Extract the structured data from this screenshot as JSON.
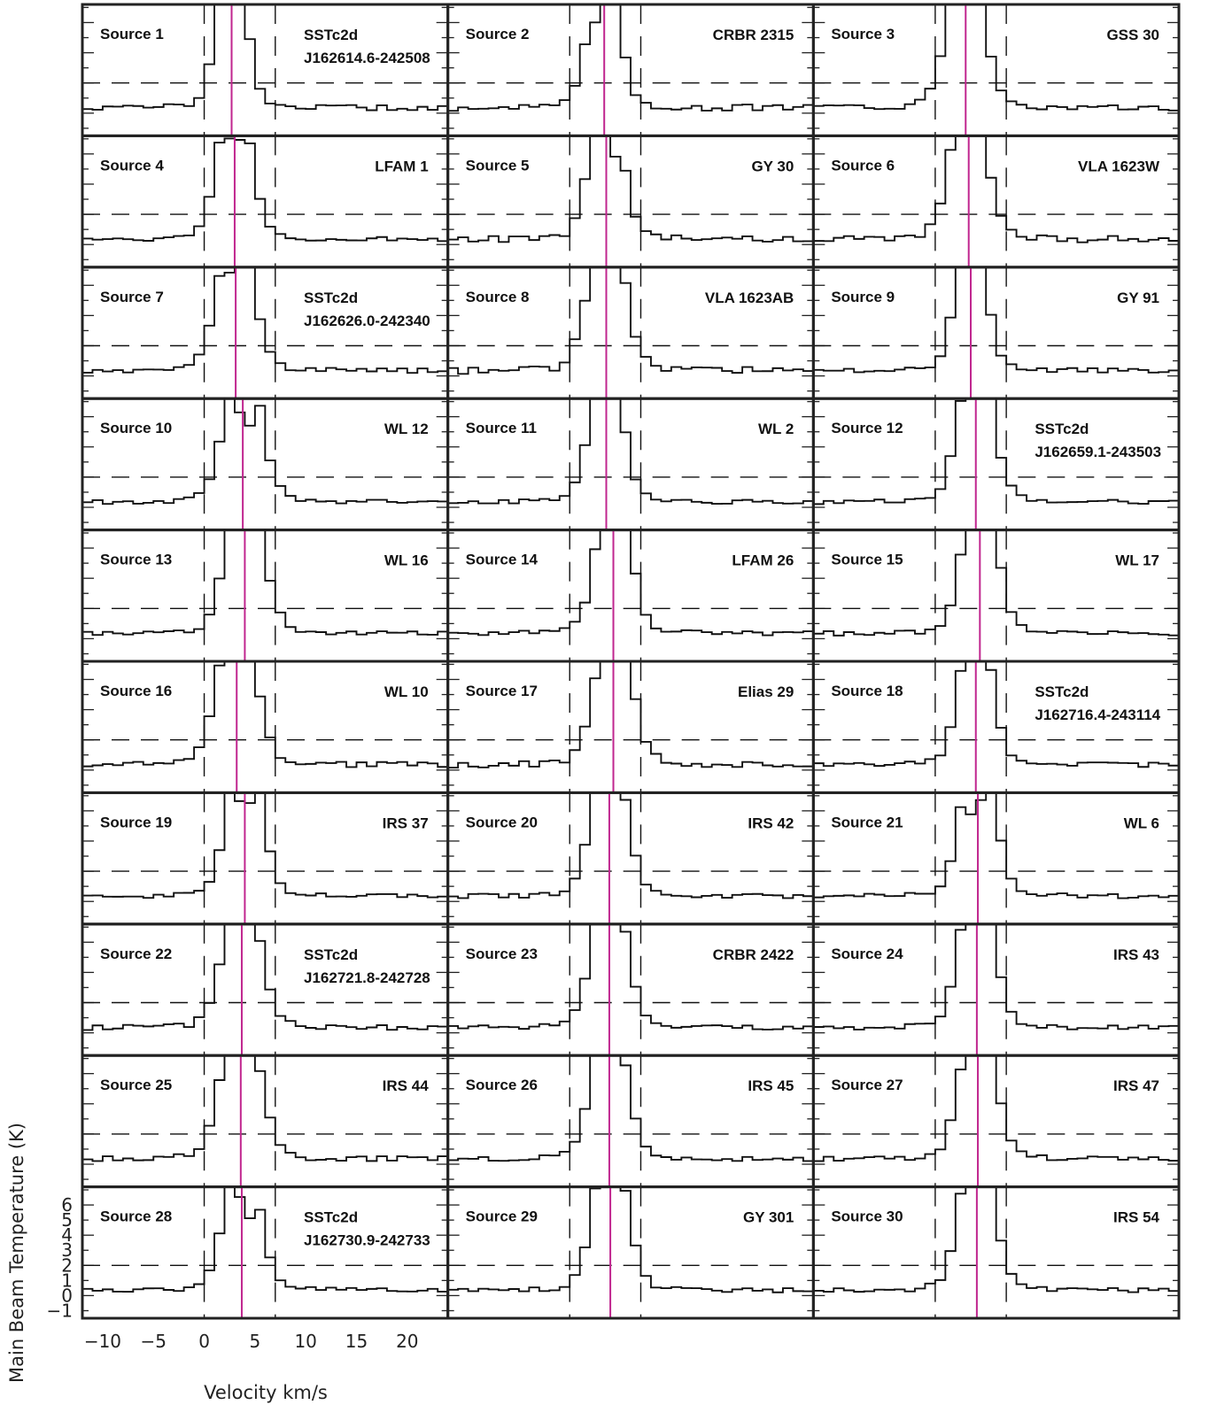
{
  "chart_data": {
    "type": "line",
    "layout": {
      "rows": 10,
      "cols": 3
    },
    "xlabel": "Velocity km/s",
    "ylabel": "Main Beam Temperature (K)",
    "xlim": [
      -12,
      24
    ],
    "ylim": [
      -1.5,
      7.2
    ],
    "x_ticks": [
      -10,
      -5,
      0,
      5,
      10,
      15,
      20
    ],
    "x_tick_labels": [
      "−10",
      "−5",
      "0",
      "5",
      "10",
      "15",
      "20"
    ],
    "y_ticks": [
      -1,
      0,
      1,
      2,
      3,
      4,
      5,
      6
    ],
    "y_tick_labels": [
      "−1",
      "0",
      "1",
      "2",
      "3",
      "4",
      "5",
      "6"
    ],
    "dashed_lines": {
      "horizontal_y": 2,
      "vertical_x": [
        0,
        7
      ]
    },
    "colors": {
      "line": "#111111",
      "vlsr_marker": "#c0268f",
      "frame": "#222222"
    },
    "panels": [
      {
        "label": "Source 1",
        "name": [
          "SSTc2d",
          "J162614.6-242508"
        ],
        "vlsr": 2.7,
        "amp": 10.0,
        "width": 1.3,
        "wing": 0.35,
        "dip": 0
      },
      {
        "label": "Source 2",
        "name": [
          "CRBR 2315"
        ],
        "vlsr": 3.4,
        "amp": 11.0,
        "width": 1.3,
        "wing": 0.45,
        "dip": 1.0
      },
      {
        "label": "Source 3",
        "name": [
          "GSS 30"
        ],
        "vlsr": 3.0,
        "amp": 10.5,
        "width": 1.6,
        "wing": 0.35,
        "dip": 0
      },
      {
        "label": "Source 4",
        "name": [
          "LFAM 1"
        ],
        "vlsr": 3.0,
        "amp": 9.5,
        "width": 1.5,
        "wing": 0.3,
        "dip": 0.8
      },
      {
        "label": "Source 5",
        "name": [
          "GY 30"
        ],
        "vlsr": 3.6,
        "amp": 10.5,
        "width": 1.4,
        "wing": 0.4,
        "dip": 1.0
      },
      {
        "label": "Source 6",
        "name": [
          "VLA 1623W"
        ],
        "vlsr": 3.3,
        "amp": 9.8,
        "width": 1.6,
        "wing": 0.45,
        "dip": 0
      },
      {
        "label": "Source 7",
        "name": [
          "SSTc2d",
          "J162626.0-242340"
        ],
        "vlsr": 3.1,
        "amp": 9.6,
        "width": 1.6,
        "wing": 0.3,
        "dip": 0.8
      },
      {
        "label": "Source 8",
        "name": [
          "VLA 1623AB"
        ],
        "vlsr": 3.6,
        "amp": 10.2,
        "width": 1.6,
        "wing": 0.5,
        "dip": 0
      },
      {
        "label": "Source 9",
        "name": [
          "GY 91"
        ],
        "vlsr": 3.5,
        "amp": 10.0,
        "width": 1.3,
        "wing": 0.3,
        "dip": 0
      },
      {
        "label": "Source 10",
        "name": [
          "WL 12"
        ],
        "vlsr": 3.8,
        "amp": 10.0,
        "width": 1.6,
        "wing": 0.3,
        "dip": 1.2
      },
      {
        "label": "Source 11",
        "name": [
          "WL 2"
        ],
        "vlsr": 3.6,
        "amp": 10.0,
        "width": 1.4,
        "wing": 0.3,
        "dip": 0
      },
      {
        "label": "Source 12",
        "name": [
          "SSTc2d",
          "J162659.1-243503"
        ],
        "vlsr": 4.0,
        "amp": 10.2,
        "width": 1.5,
        "wing": 0.3,
        "dip": 0
      },
      {
        "label": "Source 13",
        "name": [
          "WL 16"
        ],
        "vlsr": 4.0,
        "amp": 10.5,
        "width": 1.6,
        "wing": 0.3,
        "dip": 0.7
      },
      {
        "label": "Source 14",
        "name": [
          "LFAM 26"
        ],
        "vlsr": 4.3,
        "amp": 10.3,
        "width": 1.5,
        "wing": 0.3,
        "dip": 0.6
      },
      {
        "label": "Source 15",
        "name": [
          "WL 17"
        ],
        "vlsr": 4.4,
        "amp": 10.3,
        "width": 1.5,
        "wing": 0.3,
        "dip": 0.8
      },
      {
        "label": "Source 16",
        "name": [
          "WL 10"
        ],
        "vlsr": 3.2,
        "amp": 10.0,
        "width": 1.7,
        "wing": 0.4,
        "dip": 0
      },
      {
        "label": "Source 17",
        "name": [
          "Elias 29"
        ],
        "vlsr": 4.3,
        "amp": 10.0,
        "width": 1.6,
        "wing": 0.4,
        "dip": 0
      },
      {
        "label": "Source 18",
        "name": [
          "SSTc2d",
          "J162716.4-243114"
        ],
        "vlsr": 4.0,
        "amp": 10.0,
        "width": 1.4,
        "wing": 0.3,
        "dip": 0
      },
      {
        "label": "Source 19",
        "name": [
          "IRS 37"
        ],
        "vlsr": 4.0,
        "amp": 10.2,
        "width": 1.5,
        "wing": 0.3,
        "dip": 1.1
      },
      {
        "label": "Source 20",
        "name": [
          "IRS 42"
        ],
        "vlsr": 3.9,
        "amp": 10.2,
        "width": 1.5,
        "wing": 0.3,
        "dip": 0
      },
      {
        "label": "Source 21",
        "name": [
          "WL 6"
        ],
        "vlsr": 4.2,
        "amp": 10.4,
        "width": 1.5,
        "wing": 0.3,
        "dip": 1.2
      },
      {
        "label": "Source 22",
        "name": [
          "SSTc2d",
          "J162721.8-242728"
        ],
        "vlsr": 3.7,
        "amp": 9.8,
        "width": 1.6,
        "wing": 0.35,
        "dip": 0
      },
      {
        "label": "Source 23",
        "name": [
          "CRBR 2422"
        ],
        "vlsr": 3.9,
        "amp": 10.2,
        "width": 1.5,
        "wing": 0.3,
        "dip": 0
      },
      {
        "label": "Source 24",
        "name": [
          "IRS 43"
        ],
        "vlsr": 4.1,
        "amp": 10.3,
        "width": 1.5,
        "wing": 0.3,
        "dip": 0
      },
      {
        "label": "Source 25",
        "name": [
          "IRS 44"
        ],
        "vlsr": 3.6,
        "amp": 10.0,
        "width": 1.7,
        "wing": 0.4,
        "dip": 0
      },
      {
        "label": "Source 26",
        "name": [
          "IRS 45"
        ],
        "vlsr": 3.9,
        "amp": 10.0,
        "width": 1.5,
        "wing": 0.3,
        "dip": 0.6
      },
      {
        "label": "Source 27",
        "name": [
          "IRS 47"
        ],
        "vlsr": 4.2,
        "amp": 10.3,
        "width": 1.5,
        "wing": 0.3,
        "dip": 0.7
      },
      {
        "label": "Source 28",
        "name": [
          "SSTc2d",
          "J162730.9-242733"
        ],
        "vlsr": 3.7,
        "amp": 10.0,
        "width": 1.5,
        "wing": 0.3,
        "dip": 1.2
      },
      {
        "label": "Source 29",
        "name": [
          "GY 301"
        ],
        "vlsr": 4.0,
        "amp": 10.0,
        "width": 1.5,
        "wing": 0.3,
        "dip": 0
      },
      {
        "label": "Source 30",
        "name": [
          "IRS 54"
        ],
        "vlsr": 4.1,
        "amp": 10.0,
        "width": 1.5,
        "wing": 0.35,
        "dip": 0
      }
    ]
  }
}
